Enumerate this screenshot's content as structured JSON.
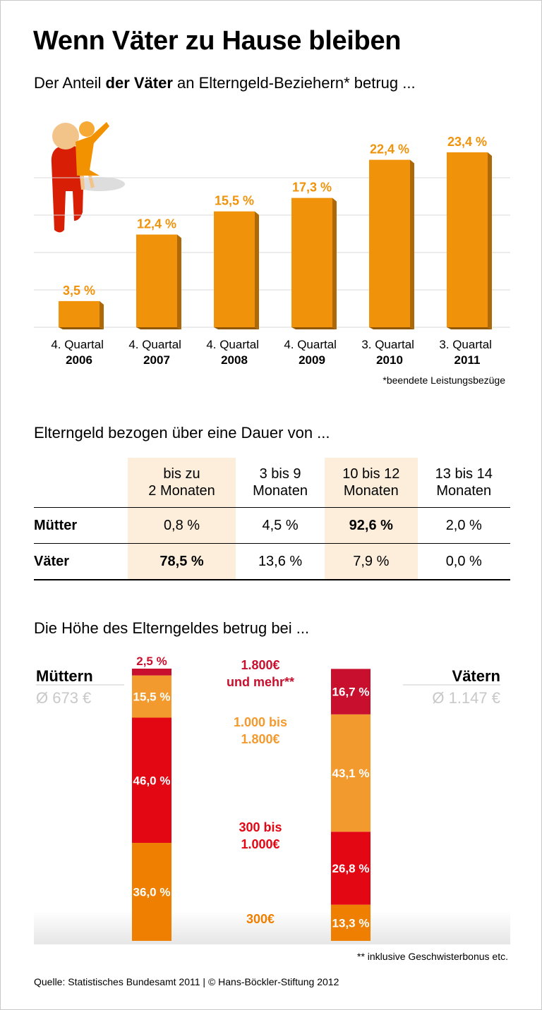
{
  "title": "Wenn Väter zu Hause bleiben",
  "chart_data": [
    {
      "type": "bar",
      "subtitle": [
        "Der Anteil",
        "der Väter",
        "an Elterngeld-Beziehern* betrug ..."
      ],
      "categories": [
        "4. Quartal 2006",
        "4. Quartal 2007",
        "4. Quartal 2008",
        "4. Quartal 2009",
        "3. Quartal 2010",
        "3. Quartal 2011"
      ],
      "values": [
        3.5,
        12.4,
        15.5,
        17.3,
        22.4,
        23.4
      ],
      "value_labels": [
        "3,5 %",
        "12,4 %",
        "15,5 %",
        "17,3 %",
        "22,4 %",
        "23,4 %"
      ],
      "color": "#f0920a",
      "ylim": [
        0,
        25
      ],
      "yticks": [
        0,
        5,
        10,
        15,
        20
      ],
      "grid": true,
      "tick_labels": false,
      "footnote": "*beendete Leistungsbezüge"
    },
    {
      "type": "stacked_bar",
      "title": "Die Höhe des Elterngeldes betrug bei ...",
      "categories": [
        "Müttern",
        "Vätern"
      ],
      "averages": [
        "Ø 673 €",
        "Ø 1.147 €"
      ],
      "series": [
        {
          "name": "300€",
          "color": "#ee7f00",
          "values": [
            36.0,
            13.3
          ],
          "value_labels": [
            "36,0 %",
            "13,3 %"
          ]
        },
        {
          "name": "300 bis\n1.000€",
          "color": "#e30613",
          "values": [
            46.0,
            26.8
          ],
          "value_labels": [
            "46,0 %",
            "26,8 %"
          ]
        },
        {
          "name": "1.000 bis\n1.800€",
          "color": "#f29a2e",
          "values": [
            15.5,
            43.1
          ],
          "value_labels": [
            "15,5 %",
            "43,1 %"
          ]
        },
        {
          "name": "1.800€\nund mehr**",
          "color": "#c8102e",
          "values": [
            2.5,
            16.7
          ],
          "value_labels": [
            "2,5 %",
            "16,7 %"
          ]
        }
      ],
      "ylim": [
        0,
        100
      ],
      "footnote": "** inklusive Geschwisterbonus etc."
    }
  ],
  "table": {
    "title": "Elterngeld bezogen über eine Dauer von ...",
    "columns": [
      "bis zu\n2 Monaten",
      "3 bis 9\nMonaten",
      "10 bis 12\nMonaten",
      "13 bis 14\nMonaten"
    ],
    "rows": [
      {
        "label": "Mütter",
        "cells": [
          "0,8 %",
          "4,5 %",
          "92,6 %",
          "2,0 %"
        ]
      },
      {
        "label": "Väter",
        "cells": [
          "78,5 %",
          "13,6 %",
          "7,9 %",
          "0,0 %"
        ]
      }
    ]
  },
  "source": "Quelle: Statistisches Bundesamt 2011 | © Hans-Böckler-Stiftung 2012"
}
